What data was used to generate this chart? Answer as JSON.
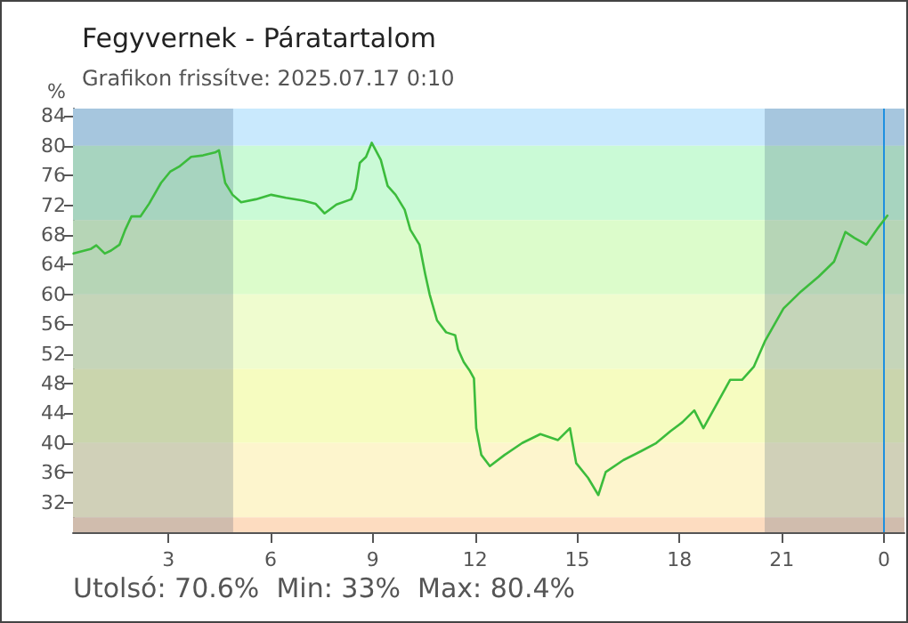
{
  "chart_data": {
    "type": "line",
    "title": "Fegyvernek - Páratartalom",
    "subtitle": "Grafikon frissítve: 2025.07.17 0:10",
    "ylabel": "%",
    "annotations": [
      "Utolsó: 70.6%  Min: 33%  Max: 80.4%"
    ],
    "x": [
      "2025-07-16T00:13",
      "2025-07-16T00:43",
      "2025-07-16T00:53",
      "2025-07-16T01:08",
      "2025-07-16T01:19",
      "2025-07-16T01:34",
      "2025-07-16T01:44",
      "2025-07-16T01:55",
      "2025-07-16T02:11",
      "2025-07-16T02:26",
      "2025-07-16T02:47",
      "2025-07-16T03:03",
      "2025-07-16T03:19",
      "2025-07-16T03:40",
      "2025-07-16T04:01",
      "2025-07-16T04:22",
      "2025-07-16T04:29",
      "2025-07-16T04:40",
      "2025-07-16T04:53",
      "2025-07-16T05:08",
      "2025-07-16T05:34",
      "2025-07-16T06:01",
      "2025-07-16T06:27",
      "2025-07-16T06:58",
      "2025-07-16T07:19",
      "2025-07-16T07:35",
      "2025-07-16T07:56",
      "2025-07-16T08:22",
      "2025-07-16T08:30",
      "2025-07-16T08:37",
      "2025-07-16T08:48",
      "2025-07-16T08:58",
      "2025-07-16T09:14",
      "2025-07-16T09:26",
      "2025-07-16T09:40",
      "2025-07-16T09:56",
      "2025-07-16T10:06",
      "2025-07-16T10:22",
      "2025-07-16T10:32",
      "2025-07-16T10:40",
      "2025-07-16T10:53",
      "2025-07-16T11:09",
      "2025-07-16T11:25",
      "2025-07-16T11:30",
      "2025-07-16T11:40",
      "2025-07-16T11:50",
      "2025-07-16T11:58",
      "2025-07-16T12:02",
      "2025-07-16T12:11",
      "2025-07-16T12:26",
      "2025-07-16T12:52",
      "2025-07-16T13:23",
      "2025-07-16T13:55",
      "2025-07-16T14:26",
      "2025-07-16T14:47",
      "2025-07-16T14:58",
      "2025-07-16T15:19",
      "2025-07-16T15:37",
      "2025-07-16T15:50",
      "2025-07-16T16:21",
      "2025-07-16T16:52",
      "2025-07-16T17:19",
      "2025-07-16T17:44",
      "2025-07-16T18:05",
      "2025-07-16T18:26",
      "2025-07-16T18:42",
      "2025-07-16T19:08",
      "2025-07-16T19:29",
      "2025-07-16T19:50",
      "2025-07-16T20:11",
      "2025-07-16T20:31",
      "2025-07-16T21:03",
      "2025-07-16T21:34",
      "2025-07-16T22:05",
      "2025-07-16T22:32",
      "2025-07-16T22:52",
      "2025-07-16T23:08",
      "2025-07-16T23:29",
      "2025-07-16T23:50",
      "2025-07-17T00:06"
    ],
    "series": [
      {
        "color": "#3cbc3c",
        "values": [
          65.5,
          66.1,
          66.6,
          65.5,
          65.9,
          66.7,
          68.7,
          70.5,
          70.5,
          72.2,
          75.0,
          76.5,
          77.2,
          78.5,
          78.7,
          79.1,
          79.4,
          75.0,
          73.4,
          72.4,
          72.8,
          73.4,
          73.0,
          72.6,
          72.2,
          70.9,
          72.1,
          72.8,
          74.2,
          77.7,
          78.5,
          80.4,
          78.1,
          74.6,
          73.4,
          71.4,
          68.7,
          66.7,
          62.8,
          60.0,
          56.5,
          54.9,
          54.5,
          52.6,
          50.9,
          49.8,
          48.7,
          42.0,
          38.4,
          36.9,
          38.4,
          40.0,
          41.2,
          40.4,
          42.0,
          37.3,
          35.3,
          33.0,
          36.1,
          37.7,
          38.9,
          40.0,
          41.6,
          42.8,
          44.4,
          42.0,
          45.6,
          48.5,
          48.5,
          50.3,
          53.8,
          58.1,
          60.4,
          62.4,
          64.4,
          68.4,
          67.6,
          66.7,
          69.0,
          70.6
        ]
      }
    ],
    "xlim": [
      "2025-07-16T00:12",
      "2025-07-17T00:36"
    ],
    "xticks": [
      {
        "value": "2025-07-16T03:00",
        "label": "3"
      },
      {
        "value": "2025-07-16T06:00",
        "label": "6"
      },
      {
        "value": "2025-07-16T09:00",
        "label": "9"
      },
      {
        "value": "2025-07-16T12:00",
        "label": "12"
      },
      {
        "value": "2025-07-16T15:00",
        "label": "15"
      },
      {
        "value": "2025-07-16T18:00",
        "label": "18"
      },
      {
        "value": "2025-07-16T21:00",
        "label": "21"
      },
      {
        "value": "2025-07-17T00:00",
        "label": "0"
      }
    ],
    "ylim": [
      28,
      85
    ],
    "yticks": [
      32,
      36,
      40,
      44,
      48,
      52,
      56,
      60,
      64,
      68,
      72,
      76,
      80,
      84
    ],
    "bands": [
      {
        "axis": "y",
        "from": 80,
        "to": 85,
        "color": "#c9e9fd"
      },
      {
        "axis": "y",
        "from": 70,
        "to": 80,
        "color": "#cafad6"
      },
      {
        "axis": "y",
        "from": 60,
        "to": 70,
        "color": "#dcfccb"
      },
      {
        "axis": "y",
        "from": 50,
        "to": 60,
        "color": "#effccf"
      },
      {
        "axis": "y",
        "from": 40,
        "to": 50,
        "color": "#f6fcc0"
      },
      {
        "axis": "y",
        "from": 30,
        "to": 40,
        "color": "#fdf5cd"
      },
      {
        "axis": "y",
        "from": 28,
        "to": 30,
        "color": "#fddcc0"
      },
      {
        "axis": "x",
        "from": "2025-07-16T00:12",
        "to": "2025-07-16T04:54",
        "color": "#1e3c64"
      },
      {
        "axis": "x",
        "from": "2025-07-16T20:30",
        "to": "2025-07-17T00:36",
        "color": "#1e3c64"
      }
    ],
    "ref_lines": [
      {
        "axis": "x",
        "value": "2025-07-17T00:00",
        "color": "#1e90e0"
      }
    ],
    "grid": false,
    "marker": "none",
    "line_style": "solid"
  }
}
